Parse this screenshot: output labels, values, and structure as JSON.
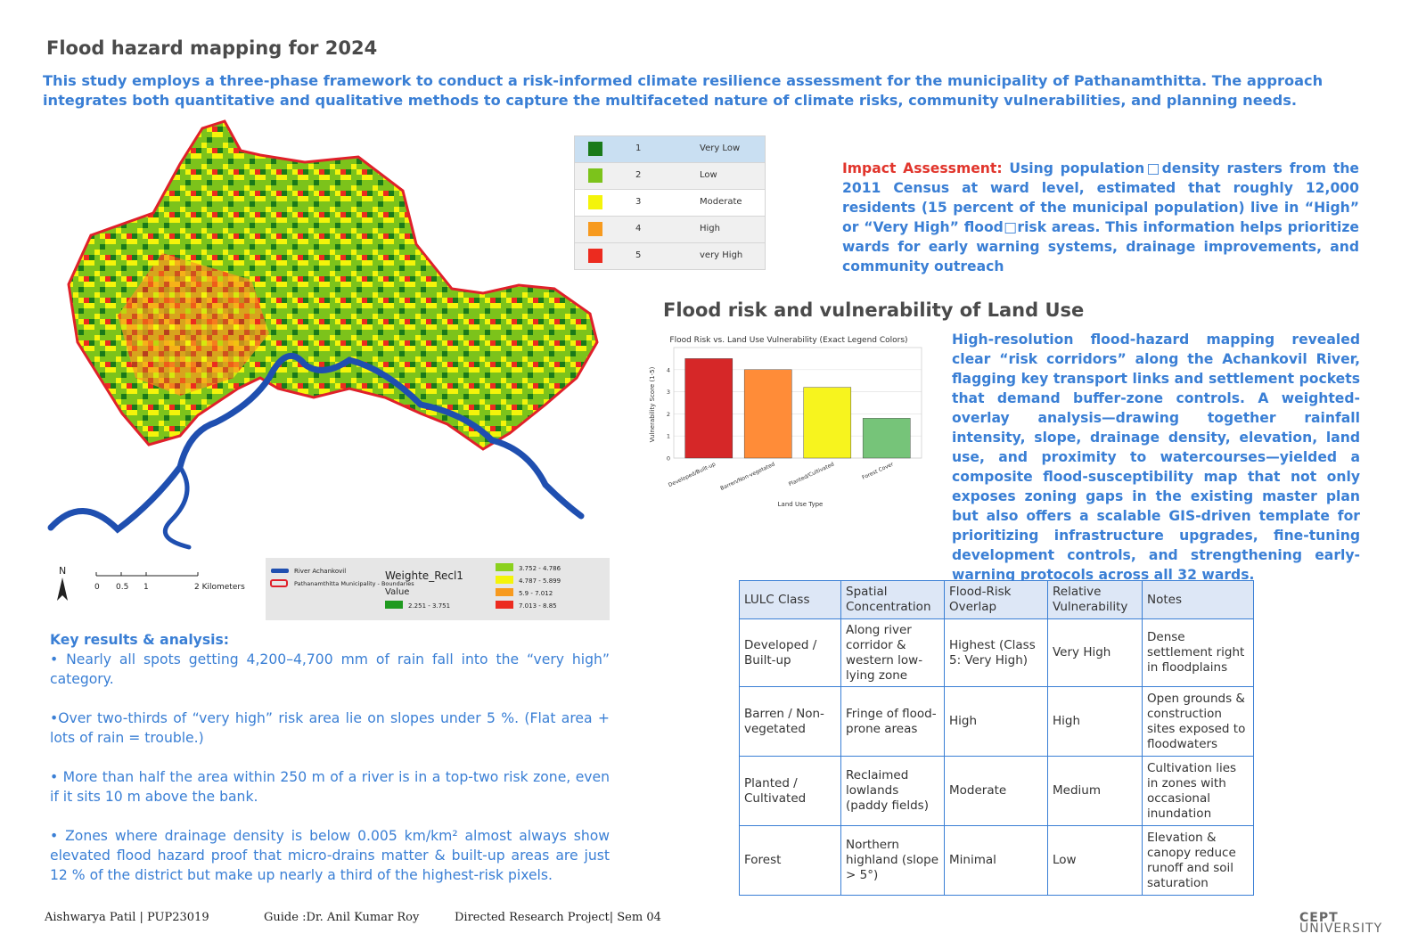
{
  "title": "Flood hazard mapping for 2024",
  "intro": "This study employs a three-phase framework to conduct a risk-informed climate resilience assessment for the municipality of Pathanamthitta. The approach integrates both quantitative and qualitative methods to capture the multifaceted nature of climate risks, community vulnerabilities, and planning needs.",
  "class_legend": [
    {
      "num": "1",
      "label": "Very Low",
      "color": "#1a7a1a"
    },
    {
      "num": "2",
      "label": "Low",
      "color": "#7cc31b"
    },
    {
      "num": "3",
      "label": "Moderate",
      "color": "#f4f40a"
    },
    {
      "num": "4",
      "label": "High",
      "color": "#f79a1e"
    },
    {
      "num": "5",
      "label": "very High",
      "color": "#ec2b1f"
    }
  ],
  "impact": {
    "lead": "Impact Assessment:",
    "text": " Using population□density rasters from the 2011 Census at ward level, estimated that roughly 12,000 residents (15 percent of the municipal population) live in “High” or “Very High” flood□risk areas. This information helps prioritize wards for early warning systems, drainage improvements, and community outreach"
  },
  "section2_title": "Flood risk and vulnerability of Land Use",
  "chart_data": {
    "type": "bar",
    "title": "Flood Risk vs. Land Use Vulnerability (Exact Legend Colors)",
    "xlabel": "Land Use Type",
    "ylabel": "Vulnerability Score (1-5)",
    "categories": [
      "Developed/Built-up",
      "Barren/Non-vegetated",
      "Planted/Cultivated",
      "Forest Cover"
    ],
    "values": [
      4.5,
      4.0,
      3.2,
      1.8
    ],
    "colors": [
      "#d62728",
      "#ff8c38",
      "#f7f41e",
      "#76c479"
    ],
    "ylim": [
      0,
      5
    ],
    "yticks": [
      "0",
      "1",
      "2",
      "3",
      "4"
    ],
    "grid": true
  },
  "description": "High-resolution flood-hazard mapping revealed clear “risk corridors” along the Achankovil River, flagging key transport links and settlement pockets that demand buffer-zone controls. A weighted-overlay analysis—drawing together rainfall intensity, slope, drainage density, elevation, land use, and proximity to watercourses—yielded a composite flood-susceptibility map that not only exposes zoning gaps in the existing master plan but also offers a scalable GIS-driven template for prioritizing infrastructure upgrades, fine-tuning development controls, and strengthening early-warning protocols across all 32 wards.",
  "scale": {
    "north": "N",
    "ticks": [
      "0",
      "0.5",
      "1",
      "2 Kilometers"
    ]
  },
  "map_legend": {
    "river": "River Achankovil",
    "boundary": "Pathanamthitta Municipality - Boundaries",
    "field": "Weighte_Recl1",
    "value_label": "Value",
    "ranges": [
      {
        "label": "2.251 - 3.751",
        "color": "#1f9a1f"
      },
      {
        "label": "3.752 - 4.786",
        "color": "#8bd11e"
      },
      {
        "label": "4.787 - 5.899",
        "color": "#f4f40a"
      },
      {
        "label": "5.9 - 7.012",
        "color": "#f79a1e"
      },
      {
        "label": "7.013 - 8.85",
        "color": "#ec2b1f"
      }
    ]
  },
  "key_results": {
    "heading": "Key results & analysis:",
    "points": [
      "• Nearly all spots getting 4,200–4,700 mm of rain fall into the “very high” category.",
      "•Over two-thirds of “very high” risk area lie on slopes under 5 %. (Flat area + lots of rain = trouble.)",
      "• More than half the area within 250 m of a river is in a top-two risk zone, even if it sits 10 m above the bank.",
      "• Zones where drainage density is below 0.005 km/km² almost always show elevated flood hazard proof that micro-drains matter & built-up areas are just 12 % of the district but make up nearly a third of the highest-risk pixels."
    ]
  },
  "table": {
    "headers": [
      "LULC Class",
      "Spatial Concentration",
      "Flood-Risk Overlap",
      "Relative Vulnerability",
      "Notes"
    ],
    "rows": [
      [
        "Developed / Built-up",
        "Along river corridor & western low-lying zone",
        "Highest (Class 5: Very High)",
        "Very High",
        "Dense settlement right in floodplains"
      ],
      [
        "Barren / Non-vegetated",
        "Fringe of flood-prone areas",
        "High",
        "High",
        "Open grounds & construction sites exposed to floodwaters"
      ],
      [
        "Planted / Cultivated",
        "Reclaimed lowlands (paddy fields)",
        "Moderate",
        "Medium",
        "Cultivation lies in zones with occasional inundation"
      ],
      [
        "Forest",
        "Northern highland (slope > 5°)",
        "Minimal",
        "Low",
        "Elevation & canopy reduce runoff and soil saturation"
      ]
    ]
  },
  "footer": {
    "author": "Aishwarya Patil | PUP23019",
    "guide": "Guide :Dr. Anil Kumar Roy",
    "project": "Directed Research Project| Sem 04"
  },
  "logo": {
    "line1": "CEPT",
    "line2": "UNIVERSITY"
  }
}
